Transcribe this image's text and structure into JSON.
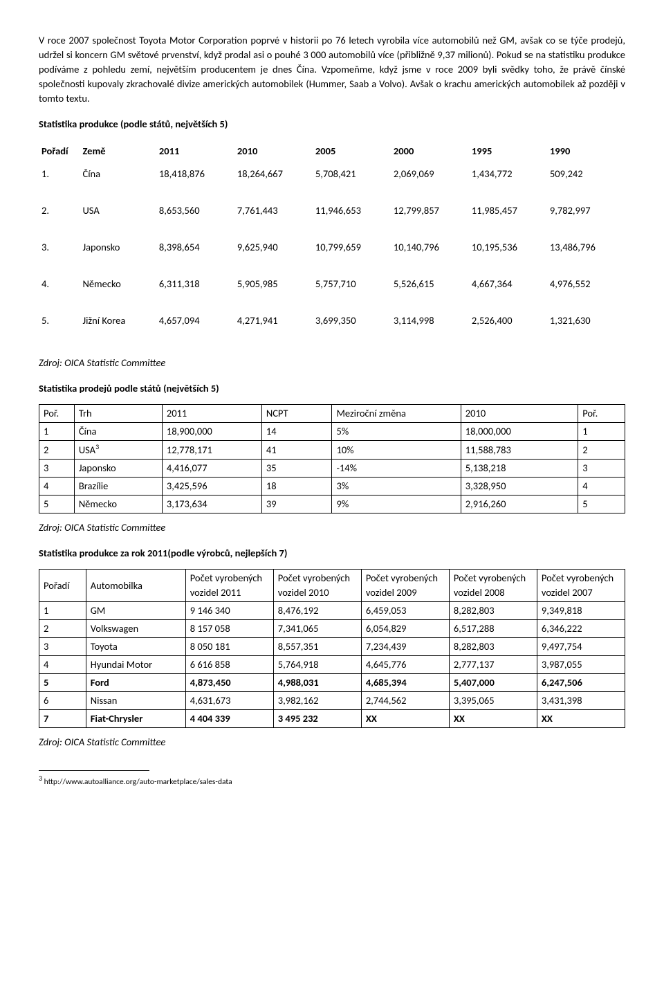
{
  "intro_paragraph": "V roce 2007 společnost Toyota Motor Corporation poprvé v historii po 76 letech vyrobila více automobilů než GM, avšak co se týče prodejů, udržel si koncern GM světové prvenství, když prodal asi o pouhé 3 000 automobilů více (přibližně 9,37 milionů). Pokud se na statistiku produkce podíváme z pohledu zemí, největším producentem je dnes Čína.  Vzpomeňme, když jsme v roce 2009 byli svědky toho, že právě čínské společnosti kupovaly zkrachovalé divize amerických automobilek (Hummer, Saab a Volvo). Avšak o krachu amerických automobilek až později v tomto textu.",
  "section1_heading": "Statistika produkce (podle států, největších 5)",
  "table1": {
    "headers": [
      "Pořadí",
      "Země",
      "2011",
      "2010",
      "2005",
      "2000",
      "1995",
      "1990"
    ],
    "rows": [
      [
        "1.",
        "Čína",
        "18,418,876",
        "18,264,667",
        "5,708,421",
        "2,069,069",
        "1,434,772",
        "509,242"
      ],
      [
        "2.",
        "USA",
        "8,653,560",
        "7,761,443",
        "11,946,653",
        "12,799,857",
        "11,985,457",
        "9,782,997"
      ],
      [
        "3.",
        "Japonsko",
        "8,398,654",
        "9,625,940",
        "10,799,659",
        "10,140,796",
        "10,195,536",
        "13,486,796"
      ],
      [
        "4.",
        "Německo",
        "6,311,318",
        "5,905,985",
        "5,757,710",
        "5,526,615",
        "4,667,364",
        "4,976,552"
      ],
      [
        "5.",
        "Jižní Korea",
        "4,657,094",
        "4,271,941",
        "3,699,350",
        "3,114,998",
        "2,526,400",
        "1,321,630"
      ]
    ]
  },
  "source_text": "Zdroj: OICA Statistic Committee",
  "section2_heading": "Statistika prodejů podle států (největších 5)",
  "table2": {
    "headers": [
      "Poř.",
      "Trh",
      "2011",
      "NCPT",
      "Meziroční změna",
      "2010",
      "Poř."
    ],
    "rows": [
      [
        "1",
        "Čína",
        "18,900,000",
        "14",
        "5%",
        "18,000,000",
        "1"
      ],
      [
        "2",
        "USA",
        "12,778,171",
        "41",
        "10%",
        "11,588,783",
        "2"
      ],
      [
        "3",
        "Japonsko",
        "4,416,077",
        "35",
        "-14%",
        "5,138,218",
        "3"
      ],
      [
        "4",
        "Brazílie",
        "3,425,596",
        "18",
        "3%",
        "3,328,950",
        "4"
      ],
      [
        "5",
        "Německo",
        "3,173,634",
        "39",
        "9%",
        "2,916,260",
        "5"
      ]
    ],
    "usa_sup": "3"
  },
  "section3_heading": "Statistika produkce za rok 2011(podle výrobců, nejlepších 7)",
  "table3": {
    "headers": [
      "Pořadí",
      "Automobilka",
      "Počet vyrobených vozidel 2011",
      "Počet vyrobených vozidel 2010",
      "Počet vyrobených vozidel 2009",
      "Počet vyrobených vozidel 2008",
      "Počet vyrobených vozidel 2007"
    ],
    "rows": [
      {
        "cells": [
          "1",
          "GM",
          "9 146 340",
          "8,476,192",
          "6,459,053",
          "8,282,803",
          "9,349,818"
        ],
        "bold": false
      },
      {
        "cells": [
          "2",
          "Volkswagen",
          "8 157 058",
          "7,341,065",
          "6,054,829",
          "6,517,288",
          "6,346,222"
        ],
        "bold": false
      },
      {
        "cells": [
          "3",
          "Toyota",
          "8 050 181",
          "8,557,351",
          "7,234,439",
          "8,282,803",
          "9,497,754"
        ],
        "bold": false
      },
      {
        "cells": [
          "4",
          "Hyundai Motor",
          "6 616 858",
          "5,764,918",
          "4,645,776",
          "2,777,137",
          "3,987,055"
        ],
        "bold": false
      },
      {
        "cells": [
          "5",
          "Ford",
          "4,873,450",
          "4,988,031",
          "4,685,394",
          "5,407,000",
          "6,247,506"
        ],
        "bold": true
      },
      {
        "cells": [
          "6",
          "Nissan",
          "4,631,673",
          "3,982,162",
          "2,744,562",
          "3,395,065",
          "3,431,398"
        ],
        "bold": false
      },
      {
        "cells": [
          "7",
          "Fiat-Chrysler",
          "4 404 339",
          "3 495 232",
          "XX",
          "XX",
          "XX"
        ],
        "bold": true
      }
    ]
  },
  "footnote_marker": "3",
  "footnote_text": " http://www.autoalliance.org/auto-marketplace/sales-data"
}
